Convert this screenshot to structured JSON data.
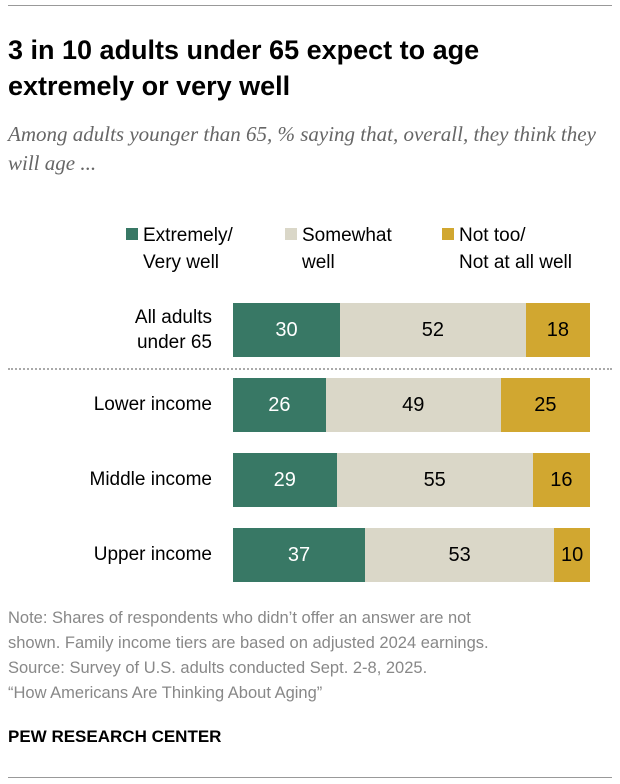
{
  "title": "3 in 10 adults under 65 expect to age extremely or very well",
  "subtitle": "Among adults younger than 65, % saying that, overall, they think they will age ...",
  "chart_data": {
    "type": "bar",
    "orientation": "horizontal",
    "stacked": true,
    "series": [
      {
        "name_line1": "Extremely/",
        "name_line2": "Very well",
        "color": "#387865",
        "text_color": "#ffffff",
        "values": [
          30,
          26,
          29,
          37
        ]
      },
      {
        "name_line1": "Somewhat",
        "name_line2": "well",
        "color": "#DAD7C8",
        "text_color": "#000000",
        "values": [
          52,
          49,
          55,
          53
        ]
      },
      {
        "name_line1": "Not too/",
        "name_line2": "Not at all well",
        "color": "#D1A730",
        "text_color": "#000000",
        "values": [
          18,
          25,
          16,
          10
        ]
      }
    ],
    "categories": [
      {
        "line1": "All adults",
        "line2": "under 65"
      },
      {
        "line1": "Lower income",
        "line2": ""
      },
      {
        "line1": "Middle income",
        "line2": ""
      },
      {
        "line1": "Upper income",
        "line2": ""
      }
    ],
    "xlim": [
      0,
      100
    ],
    "legend": "top"
  },
  "notes": [
    "Note: Shares of respondents who didn’t offer an answer are not",
    "shown. Family income tiers are based on adjusted 2024 earnings.",
    "Source: Survey of U.S. adults conducted Sept. 2-8, 2025.",
    "“How Americans Are Thinking About Aging”"
  ],
  "brand": "PEW RESEARCH CENTER"
}
